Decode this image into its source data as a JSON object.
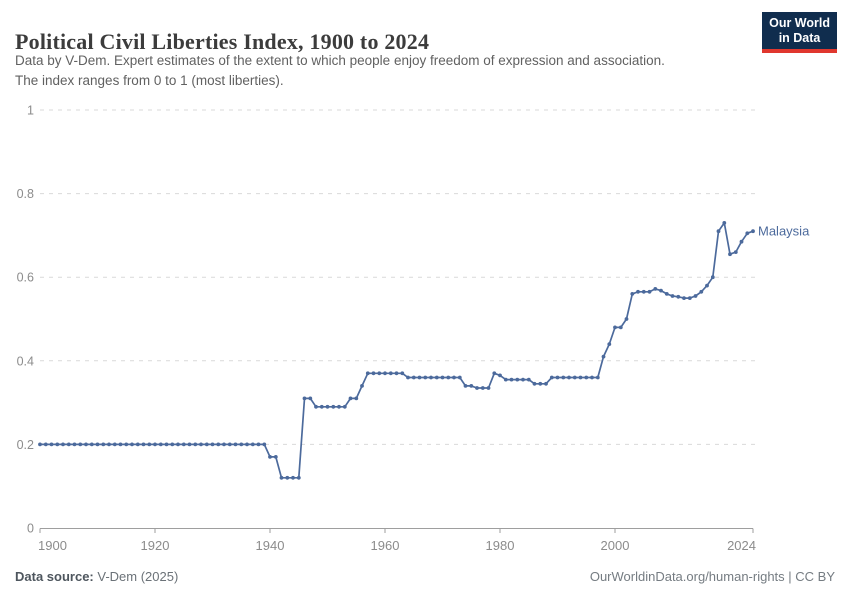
{
  "header": {
    "title": "Political Civil Liberties Index, 1900 to 2024",
    "subtitle_line1": "Data by V-Dem. Expert estimates of the extent to which people enjoy freedom of expression and association.",
    "subtitle_line2": "The index ranges from 0 to 1 (most liberties)."
  },
  "logo": {
    "line1": "Our World",
    "line2": "in Data",
    "bg_color": "#102D4E",
    "accent_color": "#E0372E"
  },
  "chart_data": {
    "type": "line",
    "title": "Political Civil Liberties Index, 1900 to 2024",
    "xlabel": "",
    "ylabel": "",
    "xlim": [
      1900,
      2024
    ],
    "ylim": [
      0,
      1
    ],
    "x_ticks": [
      1900,
      1920,
      1940,
      1960,
      1980,
      2000,
      2024
    ],
    "y_ticks": [
      0,
      0.2,
      0.4,
      0.6,
      0.8,
      1
    ],
    "grid": "horizontal-dashed",
    "legend_position": "end-of-line-label",
    "axis_color": "#9e9e9e",
    "tick_label_color": "#8c8c8c",
    "grid_color": "#d9d9d9",
    "series": [
      {
        "name": "Malaysia",
        "color": "#4C6A9C",
        "points": [
          [
            1900,
            0.2
          ],
          [
            1901,
            0.2
          ],
          [
            1902,
            0.2
          ],
          [
            1903,
            0.2
          ],
          [
            1904,
            0.2
          ],
          [
            1905,
            0.2
          ],
          [
            1906,
            0.2
          ],
          [
            1907,
            0.2
          ],
          [
            1908,
            0.2
          ],
          [
            1909,
            0.2
          ],
          [
            1910,
            0.2
          ],
          [
            1911,
            0.2
          ],
          [
            1912,
            0.2
          ],
          [
            1913,
            0.2
          ],
          [
            1914,
            0.2
          ],
          [
            1915,
            0.2
          ],
          [
            1916,
            0.2
          ],
          [
            1917,
            0.2
          ],
          [
            1918,
            0.2
          ],
          [
            1919,
            0.2
          ],
          [
            1920,
            0.2
          ],
          [
            1921,
            0.2
          ],
          [
            1922,
            0.2
          ],
          [
            1923,
            0.2
          ],
          [
            1924,
            0.2
          ],
          [
            1925,
            0.2
          ],
          [
            1926,
            0.2
          ],
          [
            1927,
            0.2
          ],
          [
            1928,
            0.2
          ],
          [
            1929,
            0.2
          ],
          [
            1930,
            0.2
          ],
          [
            1931,
            0.2
          ],
          [
            1932,
            0.2
          ],
          [
            1933,
            0.2
          ],
          [
            1934,
            0.2
          ],
          [
            1935,
            0.2
          ],
          [
            1936,
            0.2
          ],
          [
            1937,
            0.2
          ],
          [
            1938,
            0.2
          ],
          [
            1939,
            0.2
          ],
          [
            1940,
            0.17
          ],
          [
            1941,
            0.17
          ],
          [
            1942,
            0.12
          ],
          [
            1943,
            0.12
          ],
          [
            1944,
            0.12
          ],
          [
            1945,
            0.12
          ],
          [
            1946,
            0.31
          ],
          [
            1947,
            0.31
          ],
          [
            1948,
            0.29
          ],
          [
            1949,
            0.29
          ],
          [
            1950,
            0.29
          ],
          [
            1951,
            0.29
          ],
          [
            1952,
            0.29
          ],
          [
            1953,
            0.29
          ],
          [
            1954,
            0.31
          ],
          [
            1955,
            0.31
          ],
          [
            1956,
            0.34
          ],
          [
            1957,
            0.37
          ],
          [
            1958,
            0.37
          ],
          [
            1959,
            0.37
          ],
          [
            1960,
            0.37
          ],
          [
            1961,
            0.37
          ],
          [
            1962,
            0.37
          ],
          [
            1963,
            0.37
          ],
          [
            1964,
            0.36
          ],
          [
            1965,
            0.36
          ],
          [
            1966,
            0.36
          ],
          [
            1967,
            0.36
          ],
          [
            1968,
            0.36
          ],
          [
            1969,
            0.36
          ],
          [
            1970,
            0.36
          ],
          [
            1971,
            0.36
          ],
          [
            1972,
            0.36
          ],
          [
            1973,
            0.36
          ],
          [
            1974,
            0.34
          ],
          [
            1975,
            0.34
          ],
          [
            1976,
            0.335
          ],
          [
            1977,
            0.335
          ],
          [
            1978,
            0.335
          ],
          [
            1979,
            0.37
          ],
          [
            1980,
            0.365
          ],
          [
            1981,
            0.355
          ],
          [
            1982,
            0.355
          ],
          [
            1983,
            0.355
          ],
          [
            1984,
            0.355
          ],
          [
            1985,
            0.355
          ],
          [
            1986,
            0.345
          ],
          [
            1987,
            0.345
          ],
          [
            1988,
            0.345
          ],
          [
            1989,
            0.36
          ],
          [
            1990,
            0.36
          ],
          [
            1991,
            0.36
          ],
          [
            1992,
            0.36
          ],
          [
            1993,
            0.36
          ],
          [
            1994,
            0.36
          ],
          [
            1995,
            0.36
          ],
          [
            1996,
            0.36
          ],
          [
            1997,
            0.36
          ],
          [
            1998,
            0.41
          ],
          [
            1999,
            0.44
          ],
          [
            2000,
            0.48
          ],
          [
            2001,
            0.48
          ],
          [
            2002,
            0.5
          ],
          [
            2003,
            0.56
          ],
          [
            2004,
            0.565
          ],
          [
            2005,
            0.565
          ],
          [
            2006,
            0.565
          ],
          [
            2007,
            0.572
          ],
          [
            2008,
            0.568
          ],
          [
            2009,
            0.56
          ],
          [
            2010,
            0.555
          ],
          [
            2011,
            0.553
          ],
          [
            2012,
            0.55
          ],
          [
            2013,
            0.55
          ],
          [
            2014,
            0.555
          ],
          [
            2015,
            0.565
          ],
          [
            2016,
            0.58
          ],
          [
            2017,
            0.6
          ],
          [
            2018,
            0.71
          ],
          [
            2019,
            0.73
          ],
          [
            2020,
            0.655
          ],
          [
            2021,
            0.66
          ],
          [
            2022,
            0.685
          ],
          [
            2023,
            0.705
          ],
          [
            2024,
            0.71
          ]
        ]
      }
    ]
  },
  "footer": {
    "source_label": "Data source:",
    "source_value": "V-Dem (2025)",
    "right_text": "OurWorldinData.org/human-rights | CC BY"
  }
}
